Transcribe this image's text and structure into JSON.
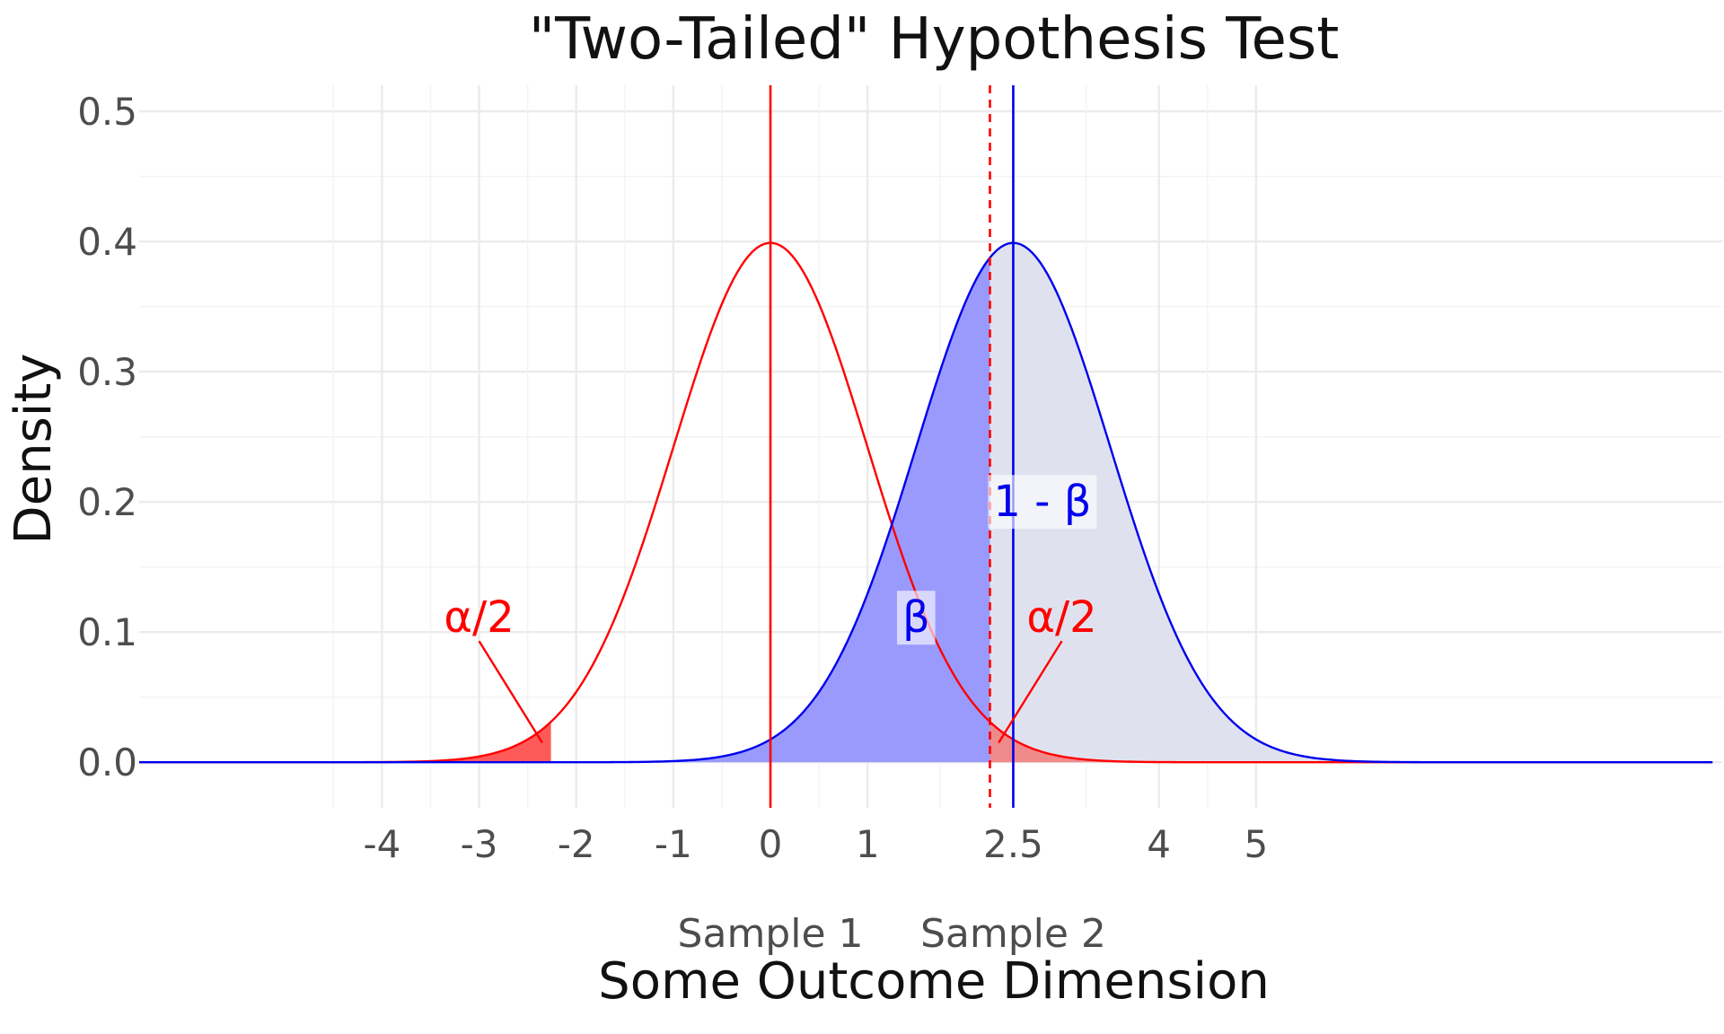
{
  "chart_data": {
    "type": "area",
    "title": "\"Two-Tailed\" Hypothesis Test",
    "xlabel": "Some Outcome Dimension",
    "ylabel": "Density",
    "xlim": [
      -6.5,
      9.8
    ],
    "ylim": [
      -0.035,
      0.52
    ],
    "grid": true,
    "x_ticks": [
      -4,
      -3,
      -2,
      -1,
      0,
      1,
      2.5,
      4,
      5
    ],
    "x_tick_labels": [
      "-4",
      "-3",
      "-2",
      "-1",
      "0",
      "1",
      "2.5",
      "4",
      "5"
    ],
    "y_ticks": [
      0.0,
      0.1,
      0.2,
      0.3,
      0.4,
      0.5
    ],
    "y_tick_labels": [
      "0.0",
      "0.1",
      "0.2",
      "0.3",
      "0.4",
      "0.5"
    ],
    "sample_labels": [
      {
        "label": "Sample 1",
        "x": 0
      },
      {
        "label": "Sample 2",
        "x": 2.5
      }
    ],
    "series": [
      {
        "distribution": "normal",
        "mean": 0,
        "sd": 1,
        "color": "#ff0000"
      },
      {
        "distribution": "normal",
        "mean": 2.5,
        "sd": 1,
        "color": "#0000ee"
      }
    ],
    "x_range": [
      -6.5,
      9.7
    ],
    "critical_value": 2.26,
    "shaded_regions": [
      {
        "name": "alpha_left",
        "curve": 0,
        "from": -6.5,
        "to": -2.26,
        "color": "#ff5a5a"
      },
      {
        "name": "beta",
        "curve": 1,
        "from": -6.5,
        "to": 2.26,
        "color": "#9a9afc"
      },
      {
        "name": "power",
        "curve": 1,
        "from": 2.26,
        "to": 9.7,
        "color": "#dfe2ee"
      },
      {
        "name": "alpha_right",
        "curve": 0,
        "from": 2.26,
        "to": 9.7,
        "color": "#f08a8a"
      }
    ],
    "vlines": [
      {
        "x": 0,
        "color": "#ff0000",
        "style": "solid"
      },
      {
        "x": 2.26,
        "color": "#ff0000",
        "style": "dashed"
      },
      {
        "x": 2.5,
        "color": "#0000ee",
        "style": "solid"
      }
    ],
    "annotations": [
      {
        "text": "α/2",
        "x": -3.0,
        "y": 0.111,
        "color": "#ff0000",
        "arrow_to": [
          -2.35,
          0.015
        ]
      },
      {
        "text": "β",
        "x": 1.5,
        "y": 0.111,
        "color": "#0000ee",
        "background": true
      },
      {
        "text": "1 - β",
        "x": 2.8,
        "y": 0.2,
        "color": "#0000ee",
        "background": true
      },
      {
        "text": "α/2",
        "x": 3.0,
        "y": 0.111,
        "color": "#ff0000",
        "arrow_to": [
          2.35,
          0.015
        ]
      }
    ]
  }
}
